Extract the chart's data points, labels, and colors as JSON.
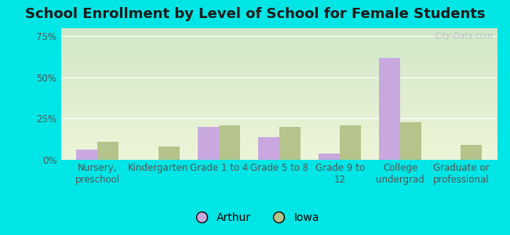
{
  "title": "School Enrollment by Level of School for Female Students",
  "categories": [
    "Nursery,\npreschool",
    "Kindergarten",
    "Grade 1 to 4",
    "Grade 5 to 8",
    "Grade 9 to\n12",
    "College\nundergrad",
    "Graduate or\nprofessional"
  ],
  "arthur_values": [
    6,
    0,
    20,
    14,
    4,
    62,
    0
  ],
  "iowa_values": [
    11,
    8,
    21,
    20,
    21,
    23,
    9
  ],
  "arthur_color": "#c9a8e0",
  "iowa_color": "#b5c48a",
  "background_outer": "#00e5e5",
  "yticks": [
    0,
    25,
    50,
    75
  ],
  "ytick_labels": [
    "0%",
    "25%",
    "50%",
    "75%"
  ],
  "ylim": [
    0,
    80
  ],
  "legend_labels": [
    "Arthur",
    "Iowa"
  ],
  "title_fontsize": 13,
  "tick_fontsize": 8.5,
  "legend_fontsize": 10,
  "bar_width": 0.35,
  "watermark": "City-Data.com",
  "grad_top_color": "#d0e8c8",
  "grad_bottom_color": "#eef5d8",
  "tick_color": "#555555",
  "grid_color": "#ffffff"
}
